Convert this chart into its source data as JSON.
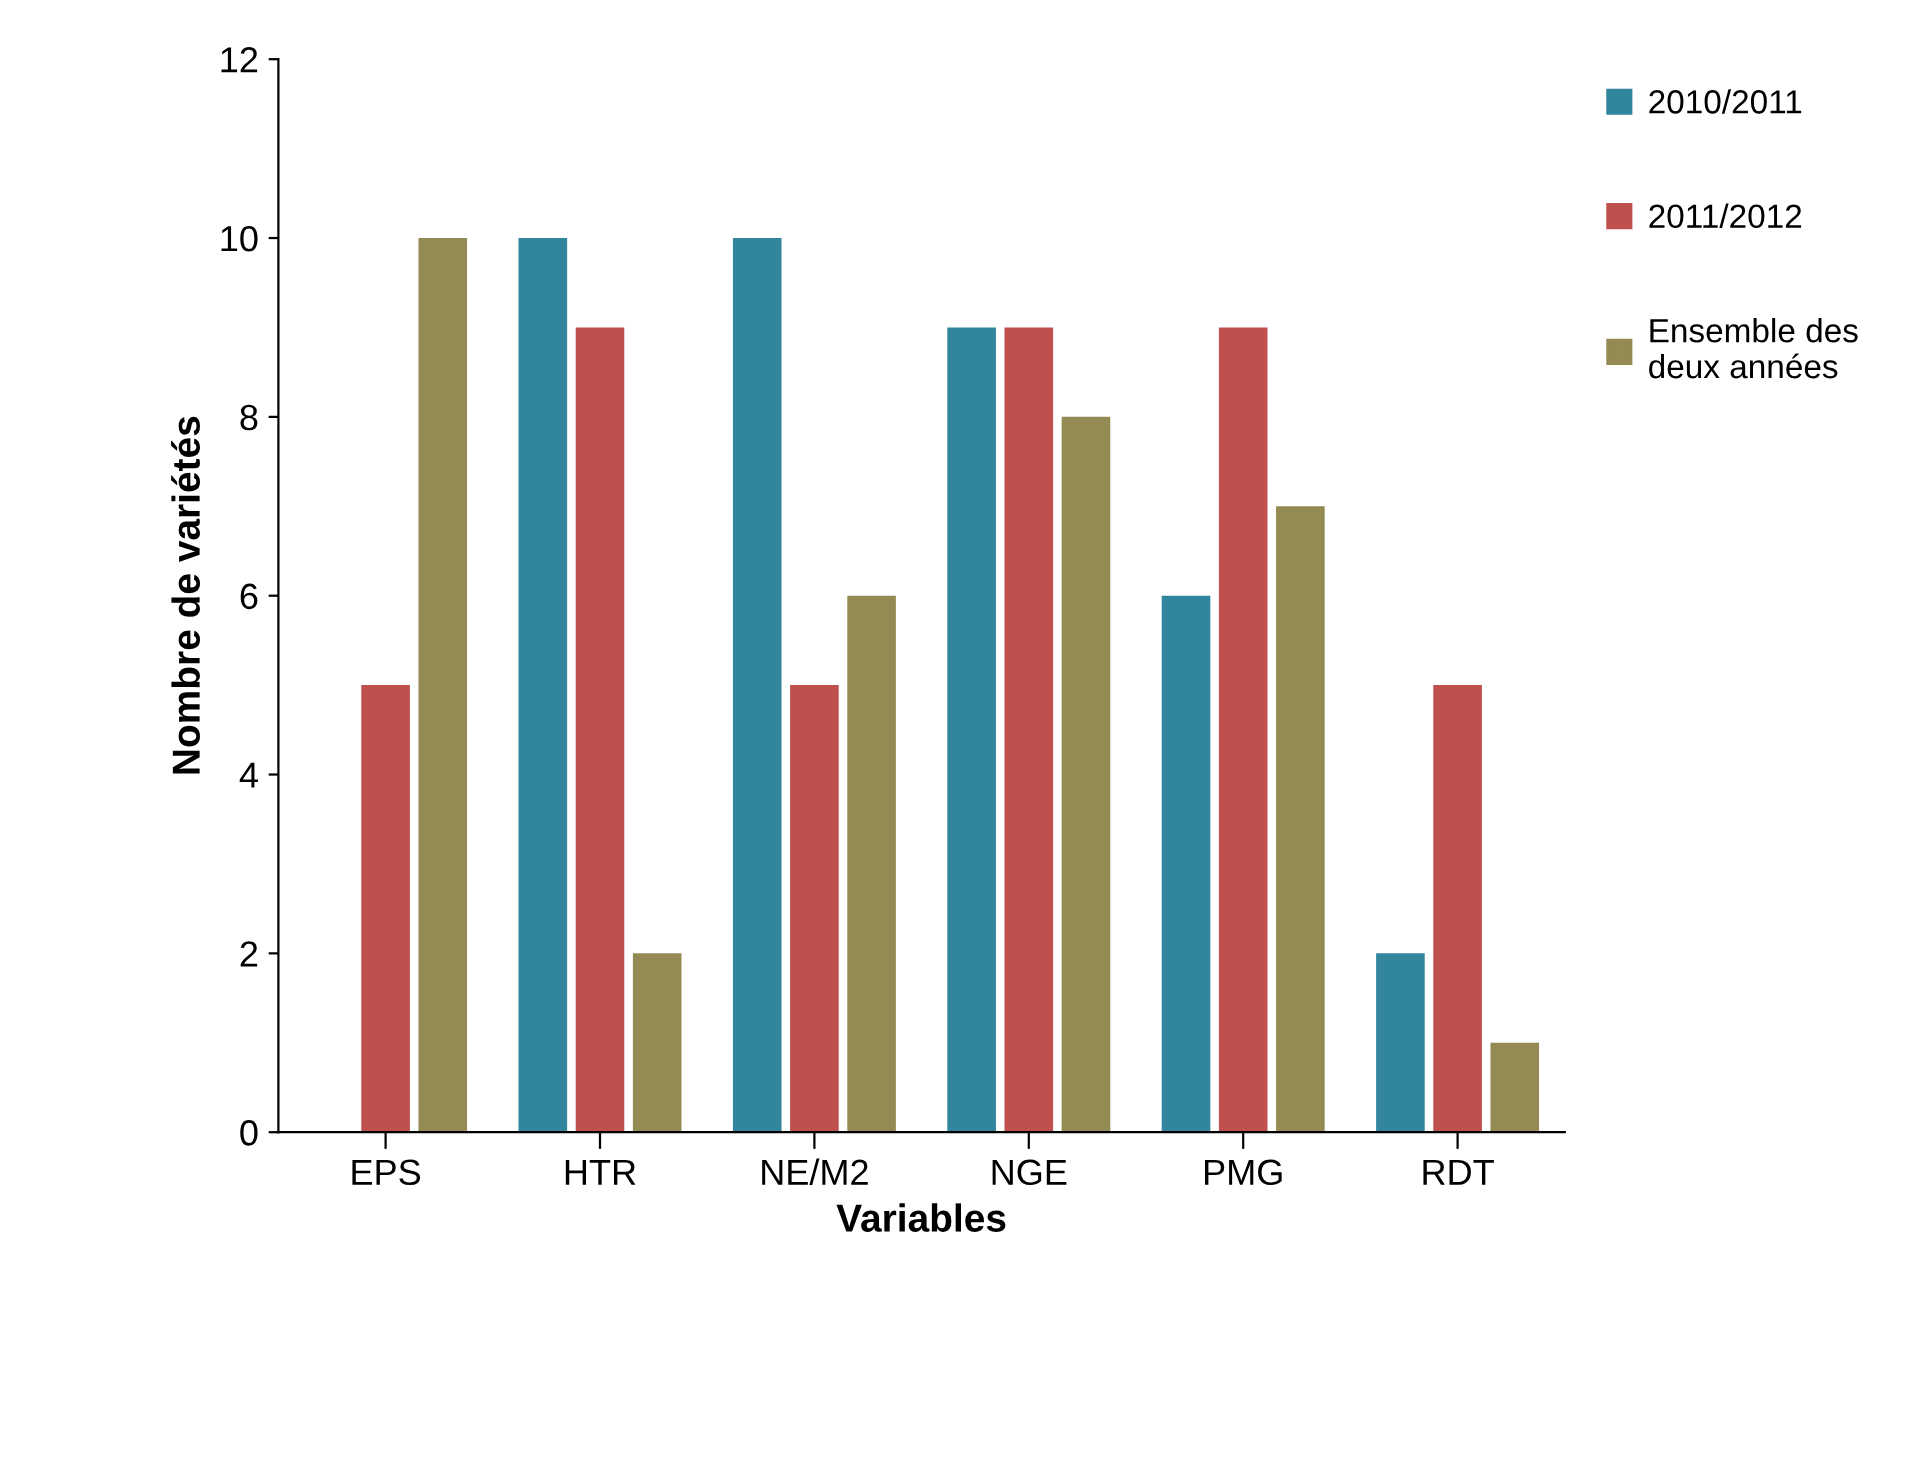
{
  "chart_data": {
    "type": "bar",
    "xlabel": "Variables",
    "ylabel": "Nombre de variétés",
    "categories": [
      "EPS",
      "HTR",
      "NE/M2",
      "NGE",
      "PMG",
      "RDT"
    ],
    "series": [
      {
        "name": "2010/2011",
        "color": "#31859c",
        "values": [
          0,
          10,
          10,
          9,
          6,
          2
        ]
      },
      {
        "name": "2011/2012",
        "color": "#c0504d",
        "values": [
          5,
          9,
          5,
          9,
          9,
          5
        ]
      },
      {
        "name": "Ensemble des\ndeux années",
        "color": "#948a54",
        "values": [
          10,
          2,
          6,
          8,
          7,
          1
        ]
      }
    ],
    "ylim": [
      0,
      12
    ],
    "yticks": [
      0,
      2,
      4,
      6,
      8,
      10,
      12
    ],
    "grid": false,
    "legend": "right"
  }
}
